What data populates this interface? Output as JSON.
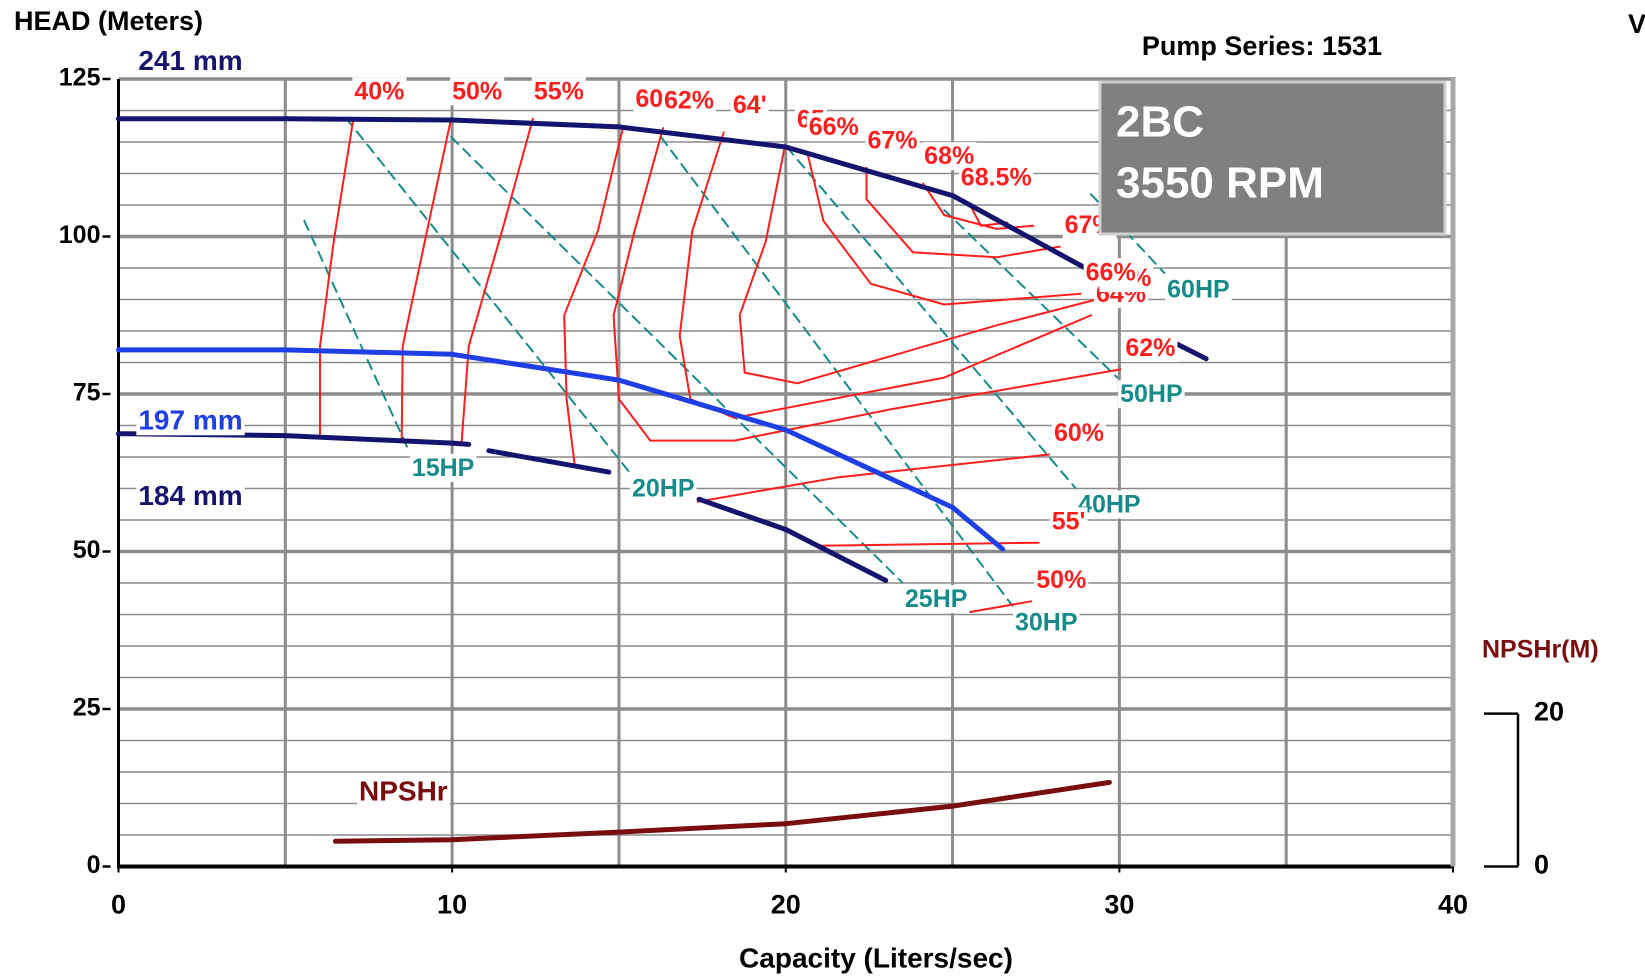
{
  "chart_data": {
    "type": "line",
    "title": "Pump Series: 1531",
    "corner_note": "V",
    "model": "2BC",
    "speed": "3550 RPM",
    "x_label": "Capacity (Liters/sec)",
    "y_label": "HEAD (Meters)",
    "y2_label": "NPSHr(M)",
    "xlim": [
      0,
      40
    ],
    "xticks": [
      0,
      10,
      20,
      30,
      40
    ],
    "xgrid": [
      5,
      10,
      15,
      20,
      25,
      30,
      35
    ],
    "ylim": [
      0,
      125
    ],
    "yticks": [
      0,
      25,
      50,
      75,
      100,
      125
    ],
    "ygrid": [
      5,
      10,
      15,
      20,
      30,
      35,
      40,
      45,
      55,
      60,
      65,
      70,
      80,
      85,
      90,
      95,
      105,
      110,
      115,
      120
    ],
    "y2lim": [
      0,
      103
    ],
    "y2ticks": [
      0,
      20
    ],
    "series": [
      {
        "name": "241 mm",
        "color": "#14146e",
        "x": [
          0,
          5,
          10,
          15,
          20,
          25,
          29.7,
          31.7,
          31.7,
          32.6
        ],
        "values": [
          118.7,
          118.7,
          118.5,
          117.4,
          114.2,
          106.5,
          92.9,
          null,
          83,
          80.6
        ]
      },
      {
        "name": "197 mm",
        "color": "#1f3fe6",
        "x": [
          0,
          5,
          10,
          15,
          20,
          25,
          26.5
        ],
        "values": [
          82,
          82,
          81.3,
          77.2,
          69.3,
          57,
          50.4
        ]
      },
      {
        "name": "184 mm",
        "color": "#14146e",
        "x": [
          0,
          5,
          10,
          10.5,
          10.8,
          11.1,
          14.7,
          16,
          17.4,
          20,
          23
        ],
        "values": [
          68.7,
          68.4,
          67.2,
          67,
          null,
          66,
          62.6,
          null,
          58.3,
          53.5,
          45.4
        ]
      },
      {
        "name": "NPSHr",
        "color": "#7a0e0e",
        "axis": "y2",
        "x": [
          6.5,
          10,
          15,
          20,
          25,
          29.7
        ],
        "values": [
          3.3,
          3.5,
          4.5,
          5.6,
          7.9,
          11.0
        ]
      }
    ],
    "efficiency_lines": {
      "color": "#ff1e1e",
      "series": [
        {
          "name": "40%",
          "x": [
            7.04,
            6.45,
            6.04,
            6.04
          ],
          "values": [
            118.7,
            99.2,
            82.6,
            68.4
          ]
        },
        {
          "name": "50%",
          "end_label": "50%",
          "x": [
            9.97,
            9.28,
            8.52,
            8.49,
            17,
            25.53,
            27.36
          ],
          "values": [
            118.7,
            101.7,
            82.6,
            67.9,
            null,
            40.4,
            42.1
          ]
        },
        {
          "name": "55%",
          "end_label": "55'",
          "x": [
            12.42,
            11.54,
            10.5,
            10.28,
            15,
            20.97,
            27.58
          ],
          "values": [
            118.7,
            101.7,
            82.6,
            67.1,
            null,
            50.9,
            51.4
          ]
        },
        {
          "name": "60",
          "end_label": "60%",
          "x": [
            15.13,
            14.37,
            13.36,
            13.43,
            13.68,
            15.5,
            17.36,
            21.6,
            27.89
          ],
          "values": [
            117.5,
            100.9,
            87.5,
            74.2,
            63.4,
            null,
            57.9,
            61.8,
            65.4
          ]
        },
        {
          "name": "62%",
          "end_label": "62%",
          "x": [
            16.32,
            15.47,
            14.84,
            15.0,
            15.94,
            18.46,
            23.18,
            30.03
          ],
          "values": [
            117.2,
            100.9,
            87.5,
            74.2,
            67.6,
            67.6,
            72.6,
            78.9
          ]
        },
        {
          "name": "64'",
          "end_label": "64%",
          "x": [
            18.14,
            17.2,
            16.82,
            17.14,
            18.46,
            24.75,
            29.15
          ],
          "values": [
            116.5,
            100.9,
            84.2,
            74.2,
            71.2,
            77.6,
            87.5
          ]
        },
        {
          "name": "65",
          "end_label": "65%",
          "x": [
            19.97,
            19.4,
            18.62,
            18.77,
            20.35,
            26.32,
            29.31
          ],
          "values": [
            114.2,
            99.2,
            87.5,
            78.4,
            76.7,
            85.9,
            90.0
          ]
        },
        {
          "name": "66%",
          "end_label": "66%",
          "x": [
            20.66,
            21.13,
            22.55,
            24.75,
            28.84
          ],
          "values": [
            113.0,
            102.5,
            92.5,
            89.2,
            90.9
          ]
        },
        {
          "name": "67%",
          "end_label": "67%",
          "x": [
            22.42,
            22.42,
            23.81,
            26.32,
            28.21
          ],
          "values": [
            110.9,
            105.9,
            97.5,
            96.7,
            98.4
          ]
        },
        {
          "name": "68%",
          "x": [
            24.12,
            24.75,
            26.32,
            27.42
          ],
          "values": [
            108.4,
            103.4,
            101.2,
            101.7
          ]
        },
        {
          "name": "68.5%",
          "x": [
            25.53,
            25.85,
            26.64
          ],
          "values": [
            105.0,
            101.7,
            102.2
          ]
        }
      ]
    },
    "power_lines": {
      "color": "#178a8a",
      "series": [
        {
          "name": "15HP",
          "x": [
            5.57,
            8.71
          ],
          "values": [
            102.5,
            65.9
          ]
        },
        {
          "name": "20HP",
          "x": [
            6.82,
            15.31
          ],
          "values": [
            118.8,
            62.6
          ]
        },
        {
          "name": "25HP",
          "x": [
            9.97,
            23.49
          ],
          "values": [
            115.8,
            45.1
          ]
        },
        {
          "name": "30HP",
          "x": [
            16.26,
            26.79
          ],
          "values": [
            115.8,
            41.4
          ]
        },
        {
          "name": "40HP",
          "x": [
            20.03,
            28.68
          ],
          "values": [
            114.2,
            60.1
          ]
        },
        {
          "name": "50HP",
          "x": [
            24.75,
            29.94
          ],
          "values": [
            104.2,
            77.6
          ]
        },
        {
          "name": "60HP",
          "x": [
            29.15,
            31.35
          ],
          "values": [
            106.7,
            94.2
          ]
        }
      ]
    }
  }
}
